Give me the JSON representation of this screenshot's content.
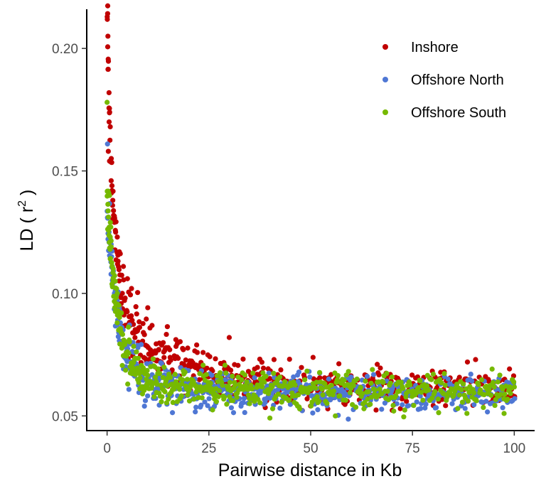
{
  "chart_data": {
    "type": "scatter",
    "title": "",
    "xlabel": "Pairwise distance in Kb",
    "ylabel_parts": {
      "before": "LD ( r",
      "superscript": "2",
      "after": " )"
    },
    "xlim": [
      -5,
      105
    ],
    "ylim": [
      0.044,
      0.216
    ],
    "x_ticks": [
      0,
      25,
      50,
      75,
      100
    ],
    "x_tick_labels": [
      "0",
      "25",
      "50",
      "75",
      "100"
    ],
    "y_ticks": [
      0.05,
      0.1,
      0.15,
      0.2
    ],
    "y_tick_labels": [
      "0.05",
      "0.10",
      "0.15",
      "0.20"
    ],
    "grid": false,
    "legend_position": "top-right",
    "series": [
      {
        "name": "Inshore",
        "color": "#C00000",
        "model": {
          "asymptote": 0.0615,
          "amp1": 0.12,
          "rate1": 0.75,
          "amp2": 0.038,
          "rate2": 0.075,
          "noise": 0.004
        },
        "points": [
          [
            0.2,
            0.205
          ],
          [
            0.5,
            0.17
          ],
          [
            0.3,
            0.158
          ],
          [
            0.6,
            0.154
          ],
          [
            1.0,
            0.146
          ],
          [
            1.2,
            0.142
          ],
          [
            1.4,
            0.138
          ],
          [
            1.8,
            0.129
          ],
          [
            2.1,
            0.125
          ],
          [
            2.5,
            0.123
          ],
          [
            3.0,
            0.117
          ],
          [
            4.0,
            0.111
          ],
          [
            5.0,
            0.106
          ],
          [
            6.0,
            0.102
          ],
          [
            30.0,
            0.082
          ],
          [
            41.0,
            0.073
          ],
          [
            90.5,
            0.073
          ],
          [
            88.5,
            0.072
          ],
          [
            85.0,
            0.063
          ]
        ]
      },
      {
        "name": "Offshore North",
        "color": "#4F77D4",
        "model": {
          "asymptote": 0.0595,
          "amp1": 0.058,
          "rate1": 0.45,
          "amp2": 0.018,
          "rate2": 0.12,
          "noise": 0.0035
        },
        "points": [
          [
            0.1,
            0.161
          ],
          [
            0.8,
            0.127
          ],
          [
            1.0,
            0.12
          ],
          [
            1.1,
            0.115
          ],
          [
            1.3,
            0.111
          ],
          [
            1.7,
            0.105
          ],
          [
            2.0,
            0.101
          ],
          [
            2.5,
            0.097
          ],
          [
            3.0,
            0.094
          ],
          [
            22.0,
            0.057
          ],
          [
            33.0,
            0.055
          ],
          [
            77.0,
            0.053
          ]
        ]
      },
      {
        "name": "Offshore South",
        "color": "#76B900",
        "model": {
          "asymptote": 0.0605,
          "amp1": 0.065,
          "rate1": 0.5,
          "amp2": 0.016,
          "rate2": 0.13,
          "noise": 0.0033
        },
        "points": [
          [
            0.0,
            0.178
          ],
          [
            0.4,
            0.141
          ],
          [
            0.6,
            0.14
          ],
          [
            0.8,
            0.129
          ],
          [
            1.0,
            0.119
          ],
          [
            1.5,
            0.11
          ],
          [
            2.0,
            0.105
          ],
          [
            2.5,
            0.1
          ],
          [
            3.5,
            0.092
          ],
          [
            97.5,
            0.051
          ],
          [
            35.0,
            0.055
          ]
        ]
      }
    ]
  }
}
